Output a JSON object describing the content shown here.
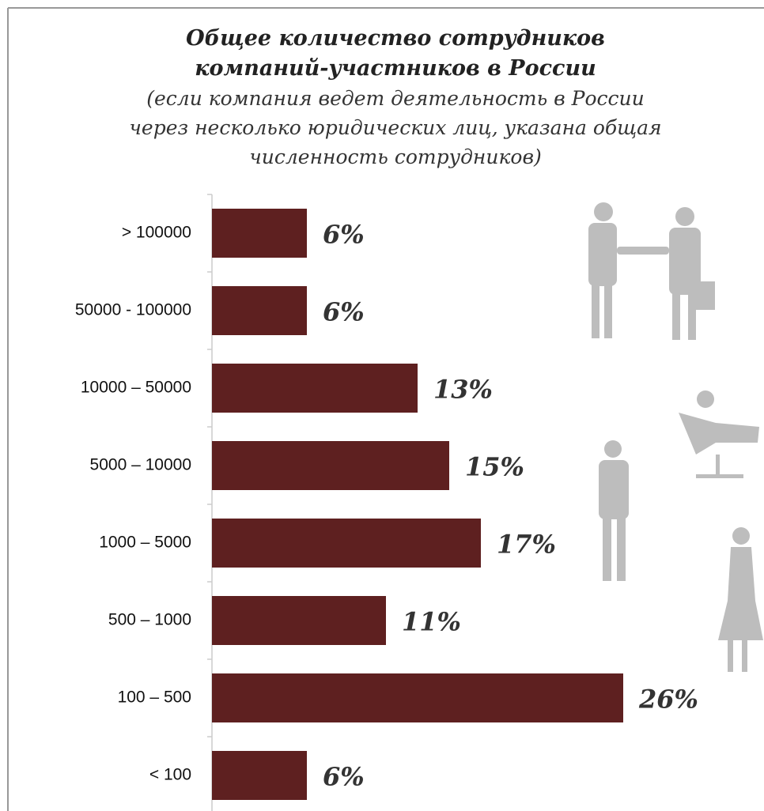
{
  "chart_data": {
    "type": "bar",
    "orientation": "horizontal",
    "title": [
      "Общее количество сотрудников",
      "компаний-участников в России"
    ],
    "subtitle": [
      "(если компания ведет деятельность в России",
      "через несколько юридических лиц, указана общая",
      "численность сотрудников)"
    ],
    "categories": [
      "> 100000",
      "50000 - 100000",
      "10000 – 50000",
      "5000 – 10000",
      "1000 – 5000",
      "500 – 1000",
      "100 – 500",
      "< 100"
    ],
    "values": [
      6,
      6,
      13,
      15,
      17,
      11,
      26,
      6
    ],
    "value_labels": [
      "6%",
      "6%",
      "13%",
      "15%",
      "17%",
      "11%",
      "26%",
      "6%"
    ],
    "color": "#5e2020",
    "xlim": [
      0,
      26
    ]
  }
}
